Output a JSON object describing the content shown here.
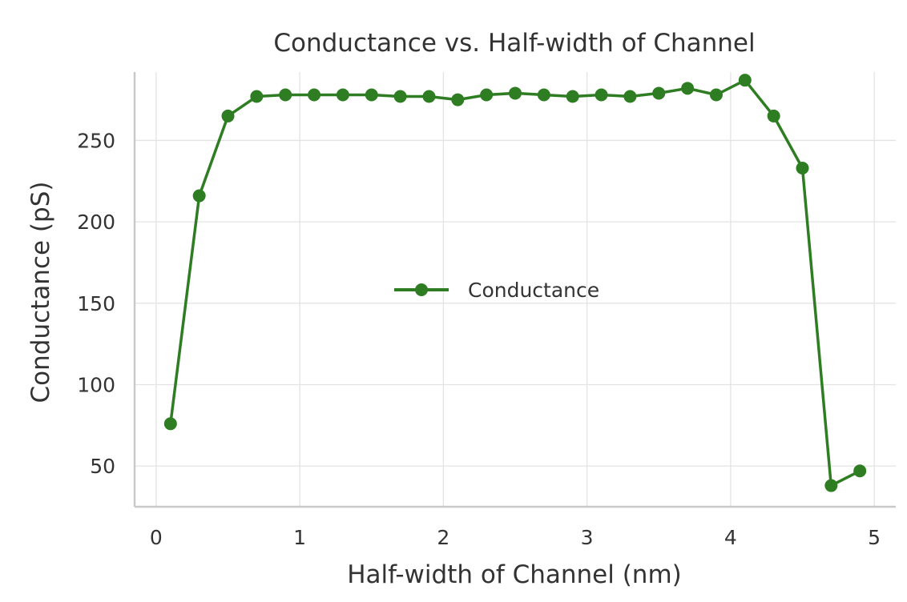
{
  "chart_data": {
    "type": "line",
    "title": "Conductance vs. Half-width of Channel",
    "xlabel": "Half-width of Channel (nm)",
    "ylabel": "Conductance (pS)",
    "xlim": [
      -0.15,
      5.15
    ],
    "ylim": [
      25,
      292
    ],
    "xticks": [
      0,
      1,
      2,
      3,
      4,
      5
    ],
    "yticks": [
      50,
      100,
      150,
      200,
      250
    ],
    "grid": true,
    "legend": {
      "position": "center"
    },
    "series": [
      {
        "name": "Conductance",
        "color": "#2e7d22",
        "marker": "circle",
        "x": [
          0.1,
          0.3,
          0.5,
          0.7,
          0.9,
          1.1,
          1.3,
          1.5,
          1.7,
          1.9,
          2.1,
          2.3,
          2.5,
          2.7,
          2.9,
          3.1,
          3.3,
          3.5,
          3.7,
          3.9,
          4.1,
          4.3,
          4.5,
          4.7,
          4.9
        ],
        "y": [
          76,
          216,
          265,
          277,
          278,
          278,
          278,
          278,
          277,
          277,
          275,
          278,
          279,
          278,
          277,
          278,
          277,
          279,
          282,
          278,
          287,
          265,
          233,
          38,
          47
        ]
      }
    ]
  }
}
